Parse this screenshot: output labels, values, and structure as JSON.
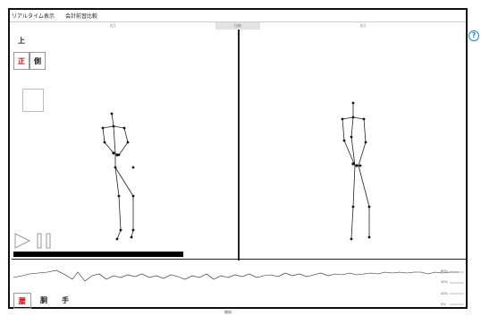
{
  "titlebar": {
    "tab1": "リアルタイム表示",
    "tab2": "会計前習比較"
  },
  "headers": {
    "left": "左1",
    "mid": "比較",
    "right": "右1"
  },
  "view_buttons": {
    "top": "上",
    "front": "正",
    "side": "側"
  },
  "mode_buttons": {
    "m1": "腰",
    "m2": "胴",
    "m3": "手"
  },
  "timeline": {
    "percent_labels": [
      "60%",
      "40%",
      "20%",
      "0%"
    ],
    "footer": "開始"
  },
  "help": {
    "glyph": "?"
  },
  "colors": {
    "accent_red": "#d00000",
    "help_blue": "#1e88e5",
    "bar": "#000000"
  }
}
